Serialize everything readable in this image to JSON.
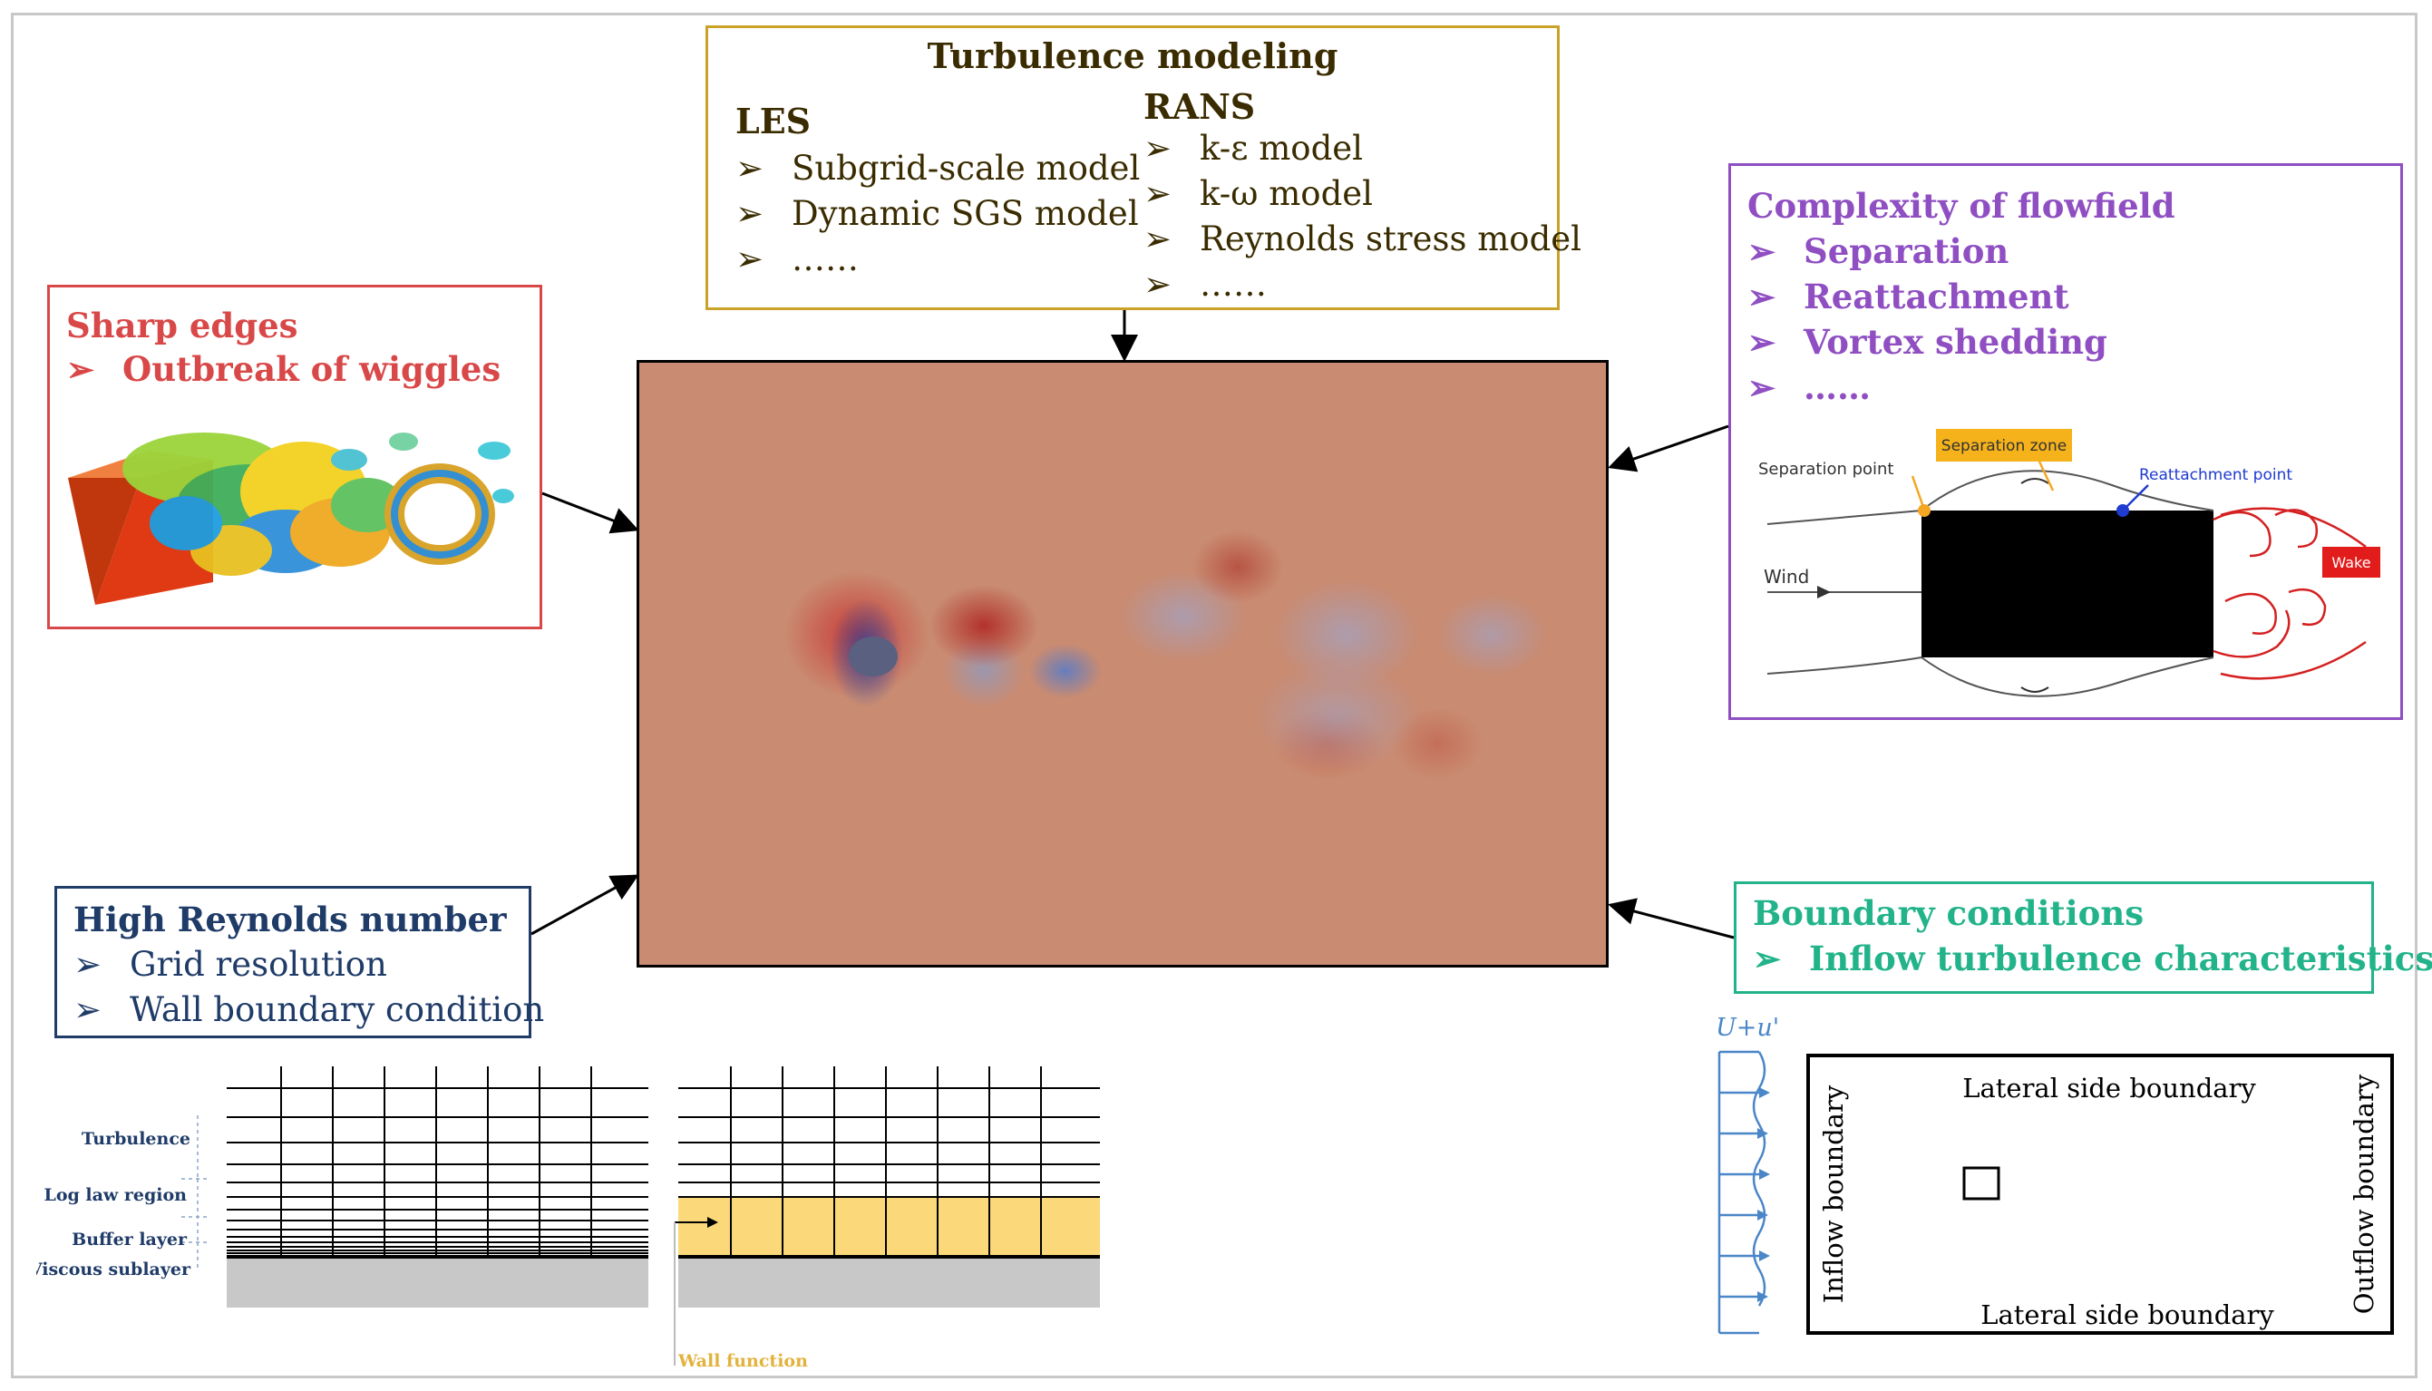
{
  "turbulence": {
    "title": "Turbulence modeling",
    "les": {
      "heading": "LES",
      "items": [
        "Subgrid-scale model",
        "Dynamic SGS model",
        "……"
      ]
    },
    "rans": {
      "heading": "RANS",
      "items": [
        "k-ε model",
        "k-ω model",
        "Reynolds stress model",
        "……"
      ]
    }
  },
  "sharp": {
    "title": "Sharp edges",
    "items": [
      "Outbreak of wiggles"
    ]
  },
  "complexity": {
    "title": "Complexity of flowfield",
    "items": [
      "Separation",
      "Reattachment",
      "Vortex shedding",
      "……"
    ],
    "sketch": {
      "separation_point": "Separation point",
      "separation_zone": "Separation zone",
      "reattachment_point": "Reattachment point",
      "wind": "Wind",
      "wake": "Wake"
    }
  },
  "reynolds": {
    "title": "High Reynolds number",
    "items": [
      "Grid resolution",
      "Wall boundary condition"
    ],
    "grid": {
      "turbulence": "Turbulence",
      "log_law": "Log law region",
      "buffer": "Buffer layer",
      "viscous": "Viscous sublayer",
      "wall_function": "Wall function"
    }
  },
  "boundary": {
    "title": "Boundary conditions",
    "items": [
      "Inflow turbulence characteristics"
    ],
    "domain": {
      "inflow_label": "U+u'",
      "lateral_top": "Lateral side boundary",
      "lateral_bottom": "Lateral side boundary",
      "inflow": "Inflow boundary",
      "outflow": "Outflow boundary"
    }
  },
  "colors": {
    "gold": "#c9a227",
    "title_gold": "#3a2c00",
    "red": "#d94848",
    "purple": "#8f4fc2",
    "navy": "#1f3b68",
    "teal": "#22b38a",
    "flow_bg": "#c98b72",
    "wall_gold": "#fbd97a"
  }
}
